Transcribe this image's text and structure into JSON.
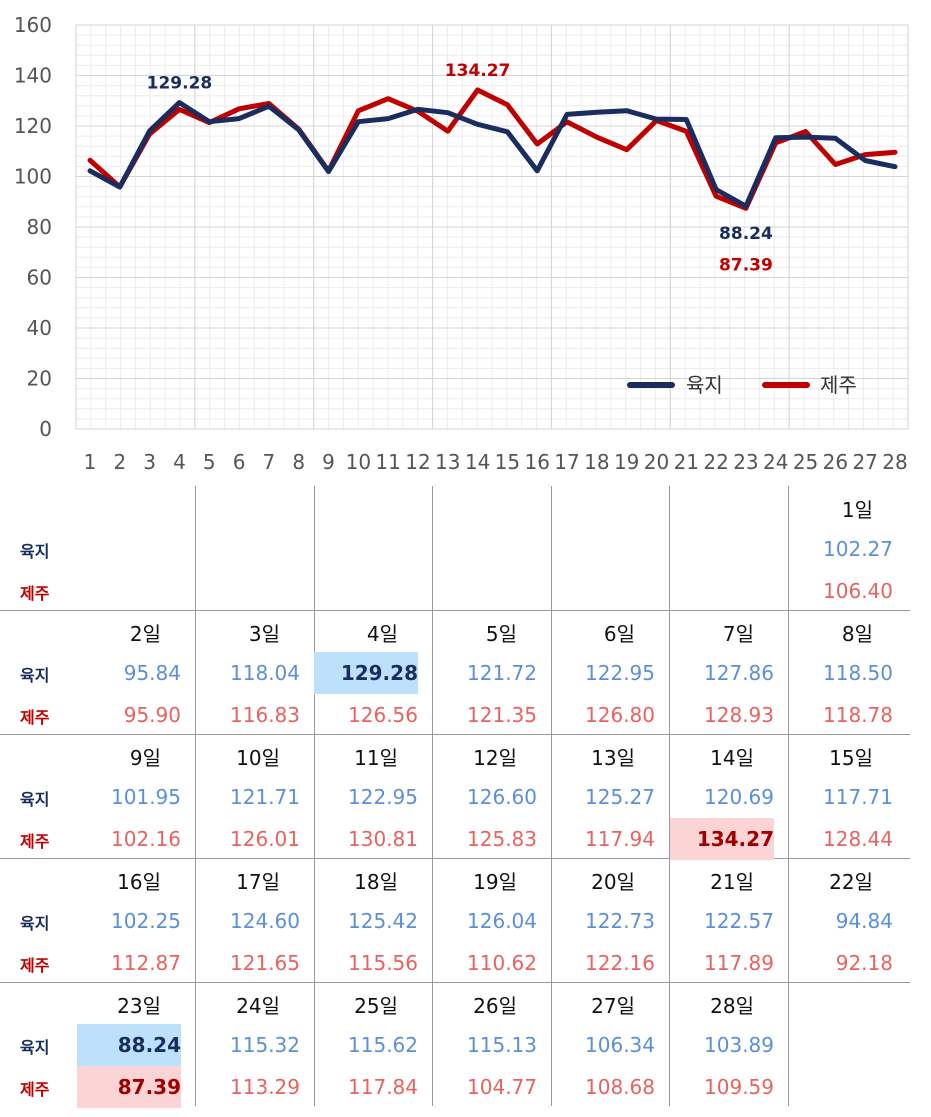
{
  "chart_data": {
    "type": "line",
    "x": [
      1,
      2,
      3,
      4,
      5,
      6,
      7,
      8,
      9,
      10,
      11,
      12,
      13,
      14,
      15,
      16,
      17,
      18,
      19,
      20,
      21,
      22,
      23,
      24,
      25,
      26,
      27,
      28
    ],
    "ylim": [
      0,
      160
    ],
    "yticks": [
      0,
      20,
      40,
      60,
      80,
      100,
      120,
      140,
      160
    ],
    "grid": true,
    "legend_position": "bottom-right",
    "series": [
      {
        "name": "육지",
        "color": "#1b2d5e",
        "values": [
          102.27,
          95.84,
          118.04,
          129.28,
          121.72,
          122.95,
          127.86,
          118.5,
          101.95,
          121.71,
          122.95,
          126.6,
          125.27,
          120.69,
          117.71,
          102.25,
          124.6,
          125.42,
          126.04,
          122.73,
          122.57,
          94.84,
          88.24,
          115.32,
          115.62,
          115.13,
          106.34,
          103.89
        ]
      },
      {
        "name": "제주",
        "color": "#c00000",
        "values": [
          106.4,
          95.9,
          116.83,
          126.56,
          121.35,
          126.8,
          128.93,
          118.78,
          102.16,
          126.01,
          130.81,
          125.83,
          117.94,
          134.27,
          128.44,
          112.87,
          121.65,
          115.56,
          110.62,
          122.16,
          117.89,
          92.18,
          87.39,
          113.29,
          117.84,
          104.77,
          108.68,
          109.59
        ]
      }
    ],
    "annotations": [
      {
        "text": "129.28",
        "x": 4,
        "y": 129.28,
        "series": "육지",
        "placement": "above"
      },
      {
        "text": "134.27",
        "x": 14,
        "y": 134.27,
        "series": "제주",
        "placement": "above"
      },
      {
        "text": "88.24",
        "x": 23,
        "y": 88.24,
        "series": "육지",
        "placement": "below"
      },
      {
        "text": "87.39",
        "x": 23,
        "y": 87.39,
        "series": "제주",
        "placement": "below"
      }
    ]
  },
  "calendar": {
    "row_labels": {
      "land": "육지",
      "jeju": "제주"
    },
    "day_suffix": "일",
    "first_day_column": 6,
    "columns": 7,
    "days": [
      {
        "day": 1,
        "land": "102.27",
        "jeju": "106.40"
      },
      {
        "day": 2,
        "land": "95.84",
        "jeju": "95.90"
      },
      {
        "day": 3,
        "land": "118.04",
        "jeju": "116.83"
      },
      {
        "day": 4,
        "land": "129.28",
        "jeju": "126.56",
        "highlight": "land"
      },
      {
        "day": 5,
        "land": "121.72",
        "jeju": "121.35"
      },
      {
        "day": 6,
        "land": "122.95",
        "jeju": "126.80"
      },
      {
        "day": 7,
        "land": "127.86",
        "jeju": "128.93"
      },
      {
        "day": 8,
        "land": "118.50",
        "jeju": "118.78"
      },
      {
        "day": 9,
        "land": "101.95",
        "jeju": "102.16"
      },
      {
        "day": 10,
        "land": "121.71",
        "jeju": "126.01"
      },
      {
        "day": 11,
        "land": "122.95",
        "jeju": "130.81"
      },
      {
        "day": 12,
        "land": "126.60",
        "jeju": "125.83"
      },
      {
        "day": 13,
        "land": "125.27",
        "jeju": "117.94"
      },
      {
        "day": 14,
        "land": "120.69",
        "jeju": "134.27",
        "highlight": "jeju"
      },
      {
        "day": 15,
        "land": "117.71",
        "jeju": "128.44"
      },
      {
        "day": 16,
        "land": "102.25",
        "jeju": "112.87"
      },
      {
        "day": 17,
        "land": "124.60",
        "jeju": "121.65"
      },
      {
        "day": 18,
        "land": "125.42",
        "jeju": "115.56"
      },
      {
        "day": 19,
        "land": "126.04",
        "jeju": "110.62"
      },
      {
        "day": 20,
        "land": "122.73",
        "jeju": "122.16"
      },
      {
        "day": 21,
        "land": "122.57",
        "jeju": "117.89"
      },
      {
        "day": 22,
        "land": "94.84",
        "jeju": "92.18"
      },
      {
        "day": 23,
        "land": "88.24",
        "jeju": "87.39",
        "highlight": "both"
      },
      {
        "day": 24,
        "land": "115.32",
        "jeju": "113.29"
      },
      {
        "day": 25,
        "land": "115.62",
        "jeju": "117.84"
      },
      {
        "day": 26,
        "land": "115.13",
        "jeju": "104.77"
      },
      {
        "day": 27,
        "land": "106.34",
        "jeju": "108.68"
      },
      {
        "day": 28,
        "land": "103.89",
        "jeju": "109.59"
      }
    ]
  },
  "colors": {
    "land_line": "#1b2d5e",
    "jeju_line": "#c00000",
    "land_value": "#5b8fd9",
    "jeju_value": "#e8625f",
    "land_highlight_bg": "#bde0fb",
    "jeju_highlight_bg": "#fbd5d5"
  }
}
